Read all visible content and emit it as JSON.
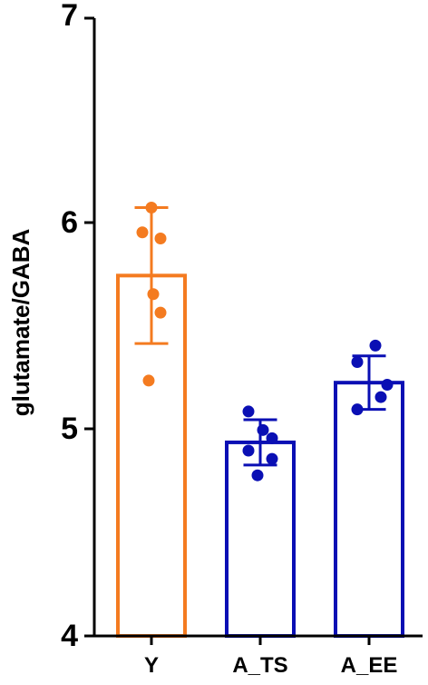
{
  "chart_data": {
    "type": "bar",
    "title": "",
    "xlabel": "",
    "ylabel": "glutamate/GABA",
    "ylim": [
      4,
      7
    ],
    "yticks": [
      "4",
      "5",
      "6",
      "7"
    ],
    "categories": [
      "Y",
      "A_TS",
      "A_EE"
    ],
    "values": [
      5.75,
      4.94,
      5.23
    ],
    "error_sd": [
      0.33,
      0.11,
      0.13
    ],
    "points": [
      [
        6.08,
        5.96,
        5.93,
        5.66,
        5.57,
        5.24
      ],
      [
        5.09,
        5.0,
        4.96,
        4.9,
        4.86,
        4.78
      ],
      [
        5.41,
        5.33,
        5.22,
        5.16,
        5.1
      ]
    ],
    "colors": [
      "#F47B20",
      "#0A0FB4",
      "#0A0FB4"
    ],
    "grid": false,
    "legend": "none"
  }
}
